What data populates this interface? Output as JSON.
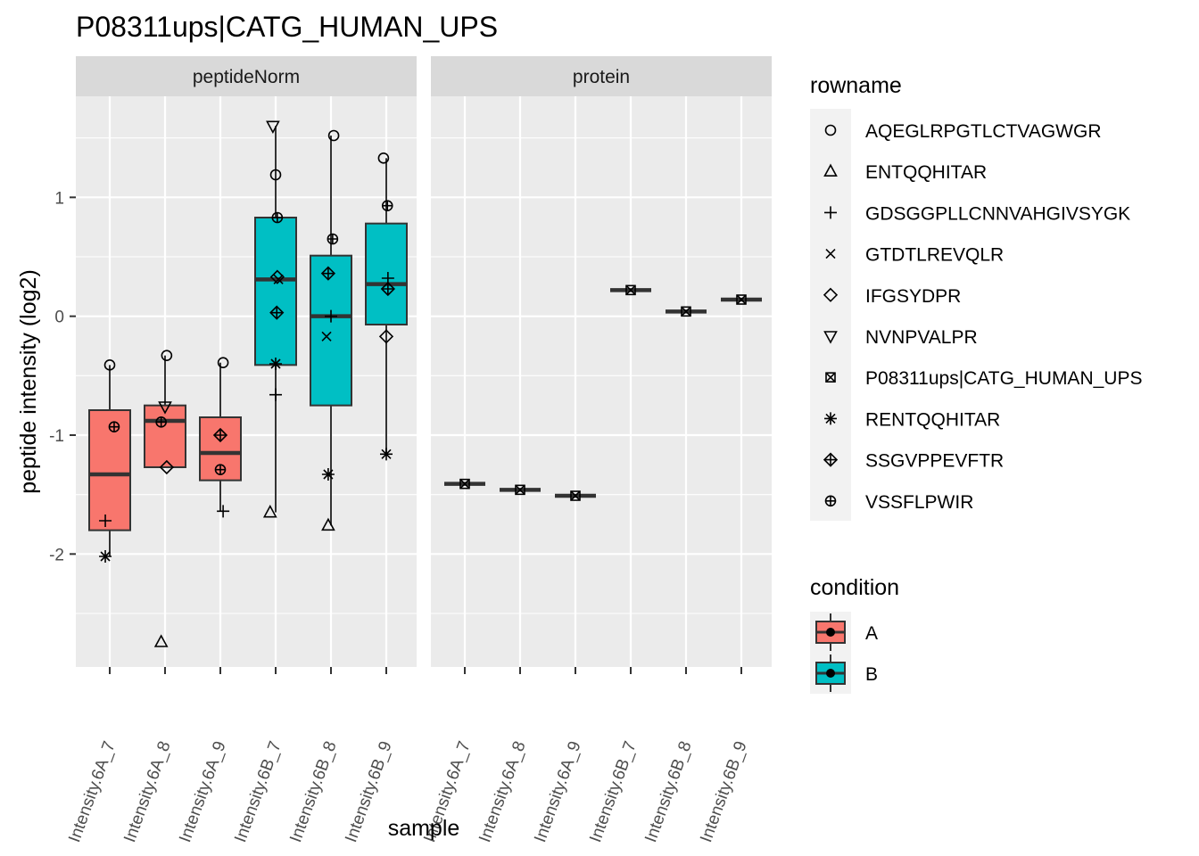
{
  "chart_data": {
    "type": "boxplot",
    "title": "P08311ups|CATG_HUMAN_UPS",
    "xlabel": "sample",
    "ylabel": "peptide intensity (log2)",
    "ylim": [
      -2.95,
      1.85
    ],
    "yticks": [
      -2,
      -1,
      0,
      1
    ],
    "grid": true,
    "legend_position": "right",
    "categories": [
      "Intensity.6A_7",
      "Intensity.6A_8",
      "Intensity.6A_9",
      "Intensity.6B_7",
      "Intensity.6B_8",
      "Intensity.6B_9"
    ],
    "category_condition": [
      "A",
      "A",
      "A",
      "B",
      "B",
      "B"
    ],
    "panels": [
      {
        "name": "peptideNorm",
        "boxes": [
          {
            "q1": -1.8,
            "median": -1.33,
            "q3": -0.79,
            "whisker_low": -2.02,
            "whisker_high": -0.41
          },
          {
            "q1": -1.27,
            "median": -0.88,
            "q3": -0.75,
            "whisker_low": -1.27,
            "whisker_high": -0.33
          },
          {
            "q1": -1.38,
            "median": -1.15,
            "q3": -0.85,
            "whisker_low": -1.64,
            "whisker_high": -0.39
          },
          {
            "q1": -0.41,
            "median": 0.31,
            "q3": 0.83,
            "whisker_low": -1.65,
            "whisker_high": 1.6
          },
          {
            "q1": -0.75,
            "median": 0.0,
            "q3": 0.51,
            "whisker_low": -1.76,
            "whisker_high": 1.52
          },
          {
            "q1": -0.07,
            "median": 0.27,
            "q3": 0.78,
            "whisker_low": -1.16,
            "whisker_high": 1.33
          }
        ],
        "points": [
          {
            "sample": 0,
            "rowname": "AQEGLRPGTLCTVAGWGR",
            "y": -0.41,
            "dx": 0
          },
          {
            "sample": 0,
            "rowname": "VSSFLPWIR",
            "y": -0.93,
            "dx": 0.08
          },
          {
            "sample": 0,
            "rowname": "GDSGGPLLCNNVAHGIVSYGK",
            "y": -1.72,
            "dx": -0.08
          },
          {
            "sample": 0,
            "rowname": "RENTQQHITAR",
            "y": -2.02,
            "dx": -0.08
          },
          {
            "sample": 1,
            "rowname": "AQEGLRPGTLCTVAGWGR",
            "y": -0.33,
            "dx": 0.03
          },
          {
            "sample": 1,
            "rowname": "NVNPVALPR",
            "y": -0.76,
            "dx": 0
          },
          {
            "sample": 1,
            "rowname": "VSSFLPWIR",
            "y": -0.89,
            "dx": -0.07
          },
          {
            "sample": 1,
            "rowname": "IFGSYDPR",
            "y": -1.27,
            "dx": 0.03
          },
          {
            "sample": 1,
            "rowname": "ENTQQHITAR",
            "y": -2.74,
            "dx": -0.07
          },
          {
            "sample": 2,
            "rowname": "AQEGLRPGTLCTVAGWGR",
            "y": -0.39,
            "dx": 0.05
          },
          {
            "sample": 2,
            "rowname": "SSGVPPEVFTR",
            "y": -1.0,
            "dx": 0
          },
          {
            "sample": 2,
            "rowname": "VSSFLPWIR",
            "y": -1.29,
            "dx": 0
          },
          {
            "sample": 2,
            "rowname": "GDSGGPLLCNNVAHGIVSYGK",
            "y": -1.64,
            "dx": 0.05
          },
          {
            "sample": 3,
            "rowname": "NVNPVALPR",
            "y": 1.6,
            "dx": -0.05
          },
          {
            "sample": 3,
            "rowname": "AQEGLRPGTLCTVAGWGR",
            "y": 1.19,
            "dx": 0
          },
          {
            "sample": 3,
            "rowname": "VSSFLPWIR",
            "y": 0.83,
            "dx": 0.03
          },
          {
            "sample": 3,
            "rowname": "IFGSYDPR",
            "y": 0.33,
            "dx": 0.03
          },
          {
            "sample": 3,
            "rowname": "GTDTLREVQLR",
            "y": 0.31,
            "dx": 0.05
          },
          {
            "sample": 3,
            "rowname": "SSGVPPEVFTR",
            "y": 0.03,
            "dx": 0.02
          },
          {
            "sample": 3,
            "rowname": "RENTQQHITAR",
            "y": -0.4,
            "dx": 0
          },
          {
            "sample": 3,
            "rowname": "GDSGGPLLCNNVAHGIVSYGK",
            "y": -0.66,
            "dx": 0
          },
          {
            "sample": 3,
            "rowname": "ENTQQHITAR",
            "y": -1.65,
            "dx": -0.1
          },
          {
            "sample": 4,
            "rowname": "AQEGLRPGTLCTVAGWGR",
            "y": 1.52,
            "dx": 0.05
          },
          {
            "sample": 4,
            "rowname": "VSSFLPWIR",
            "y": 0.65,
            "dx": 0.03
          },
          {
            "sample": 4,
            "rowname": "SSGVPPEVFTR",
            "y": 0.36,
            "dx": -0.05
          },
          {
            "sample": 4,
            "rowname": "GDSGGPLLCNNVAHGIVSYGK",
            "y": 0.0,
            "dx": 0
          },
          {
            "sample": 4,
            "rowname": "GTDTLREVQLR",
            "y": -0.17,
            "dx": -0.08
          },
          {
            "sample": 4,
            "rowname": "RENTQQHITAR",
            "y": -1.33,
            "dx": -0.05
          },
          {
            "sample": 4,
            "rowname": "ENTQQHITAR",
            "y": -1.76,
            "dx": -0.05
          },
          {
            "sample": 5,
            "rowname": "AQEGLRPGTLCTVAGWGR",
            "y": 1.33,
            "dx": -0.05
          },
          {
            "sample": 5,
            "rowname": "VSSFLPWIR",
            "y": 0.93,
            "dx": 0.02
          },
          {
            "sample": 5,
            "rowname": "GDSGGPLLCNNVAHGIVSYGK",
            "y": 0.32,
            "dx": 0.03
          },
          {
            "sample": 5,
            "rowname": "SSGVPPEVFTR",
            "y": 0.23,
            "dx": 0.03
          },
          {
            "sample": 5,
            "rowname": "IFGSYDPR",
            "y": -0.17,
            "dx": 0
          },
          {
            "sample": 5,
            "rowname": "RENTQQHITAR",
            "y": -1.16,
            "dx": 0
          }
        ]
      },
      {
        "name": "protein",
        "boxes": [
          {
            "q1": -1.41,
            "median": -1.41,
            "q3": -1.41,
            "whisker_low": -1.41,
            "whisker_high": -1.41
          },
          {
            "q1": -1.46,
            "median": -1.46,
            "q3": -1.46,
            "whisker_low": -1.46,
            "whisker_high": -1.46
          },
          {
            "q1": -1.51,
            "median": -1.51,
            "q3": -1.51,
            "whisker_low": -1.51,
            "whisker_high": -1.51
          },
          {
            "q1": 0.22,
            "median": 0.22,
            "q3": 0.22,
            "whisker_low": 0.22,
            "whisker_high": 0.22
          },
          {
            "q1": 0.04,
            "median": 0.04,
            "q3": 0.04,
            "whisker_low": 0.04,
            "whisker_high": 0.04
          },
          {
            "q1": 0.14,
            "median": 0.14,
            "q3": 0.14,
            "whisker_low": 0.14,
            "whisker_high": 0.14
          }
        ],
        "points": [
          {
            "sample": 0,
            "rowname": "P08311ups|CATG_HUMAN_UPS",
            "y": -1.41,
            "dx": 0
          },
          {
            "sample": 1,
            "rowname": "P08311ups|CATG_HUMAN_UPS",
            "y": -1.46,
            "dx": 0
          },
          {
            "sample": 2,
            "rowname": "P08311ups|CATG_HUMAN_UPS",
            "y": -1.51,
            "dx": 0
          },
          {
            "sample": 3,
            "rowname": "P08311ups|CATG_HUMAN_UPS",
            "y": 0.22,
            "dx": 0
          },
          {
            "sample": 4,
            "rowname": "P08311ups|CATG_HUMAN_UPS",
            "y": 0.04,
            "dx": 0
          },
          {
            "sample": 5,
            "rowname": "P08311ups|CATG_HUMAN_UPS",
            "y": 0.14,
            "dx": 0
          }
        ]
      }
    ],
    "legend_rowname": {
      "title": "rowname",
      "entries": [
        {
          "label": "AQEGLRPGTLCTVAGWGR",
          "shape": "circle"
        },
        {
          "label": "ENTQQHITAR",
          "shape": "triangle-up"
        },
        {
          "label": "GDSGGPLLCNNVAHGIVSYGK",
          "shape": "plus"
        },
        {
          "label": "GTDTLREVQLR",
          "shape": "cross"
        },
        {
          "label": "IFGSYDPR",
          "shape": "diamond"
        },
        {
          "label": "NVNPVALPR",
          "shape": "triangle-down"
        },
        {
          "label": "P08311ups|CATG_HUMAN_UPS",
          "shape": "square-cross"
        },
        {
          "label": "RENTQQHITAR",
          "shape": "asterisk"
        },
        {
          "label": "SSGVPPEVFTR",
          "shape": "diamond-plus"
        },
        {
          "label": "VSSFLPWIR",
          "shape": "circle-plus"
        }
      ]
    },
    "legend_condition": {
      "title": "condition",
      "entries": [
        {
          "label": "A",
          "color": "#F8766D"
        },
        {
          "label": "B",
          "color": "#00BFC4"
        }
      ]
    },
    "colors": {
      "panel_bg": "#EBEBEB",
      "strip_bg": "#D9D9D9",
      "grid": "#FFFFFF",
      "box_outline": "#333333",
      "A": "#F8766D",
      "B": "#00BFC4"
    }
  }
}
